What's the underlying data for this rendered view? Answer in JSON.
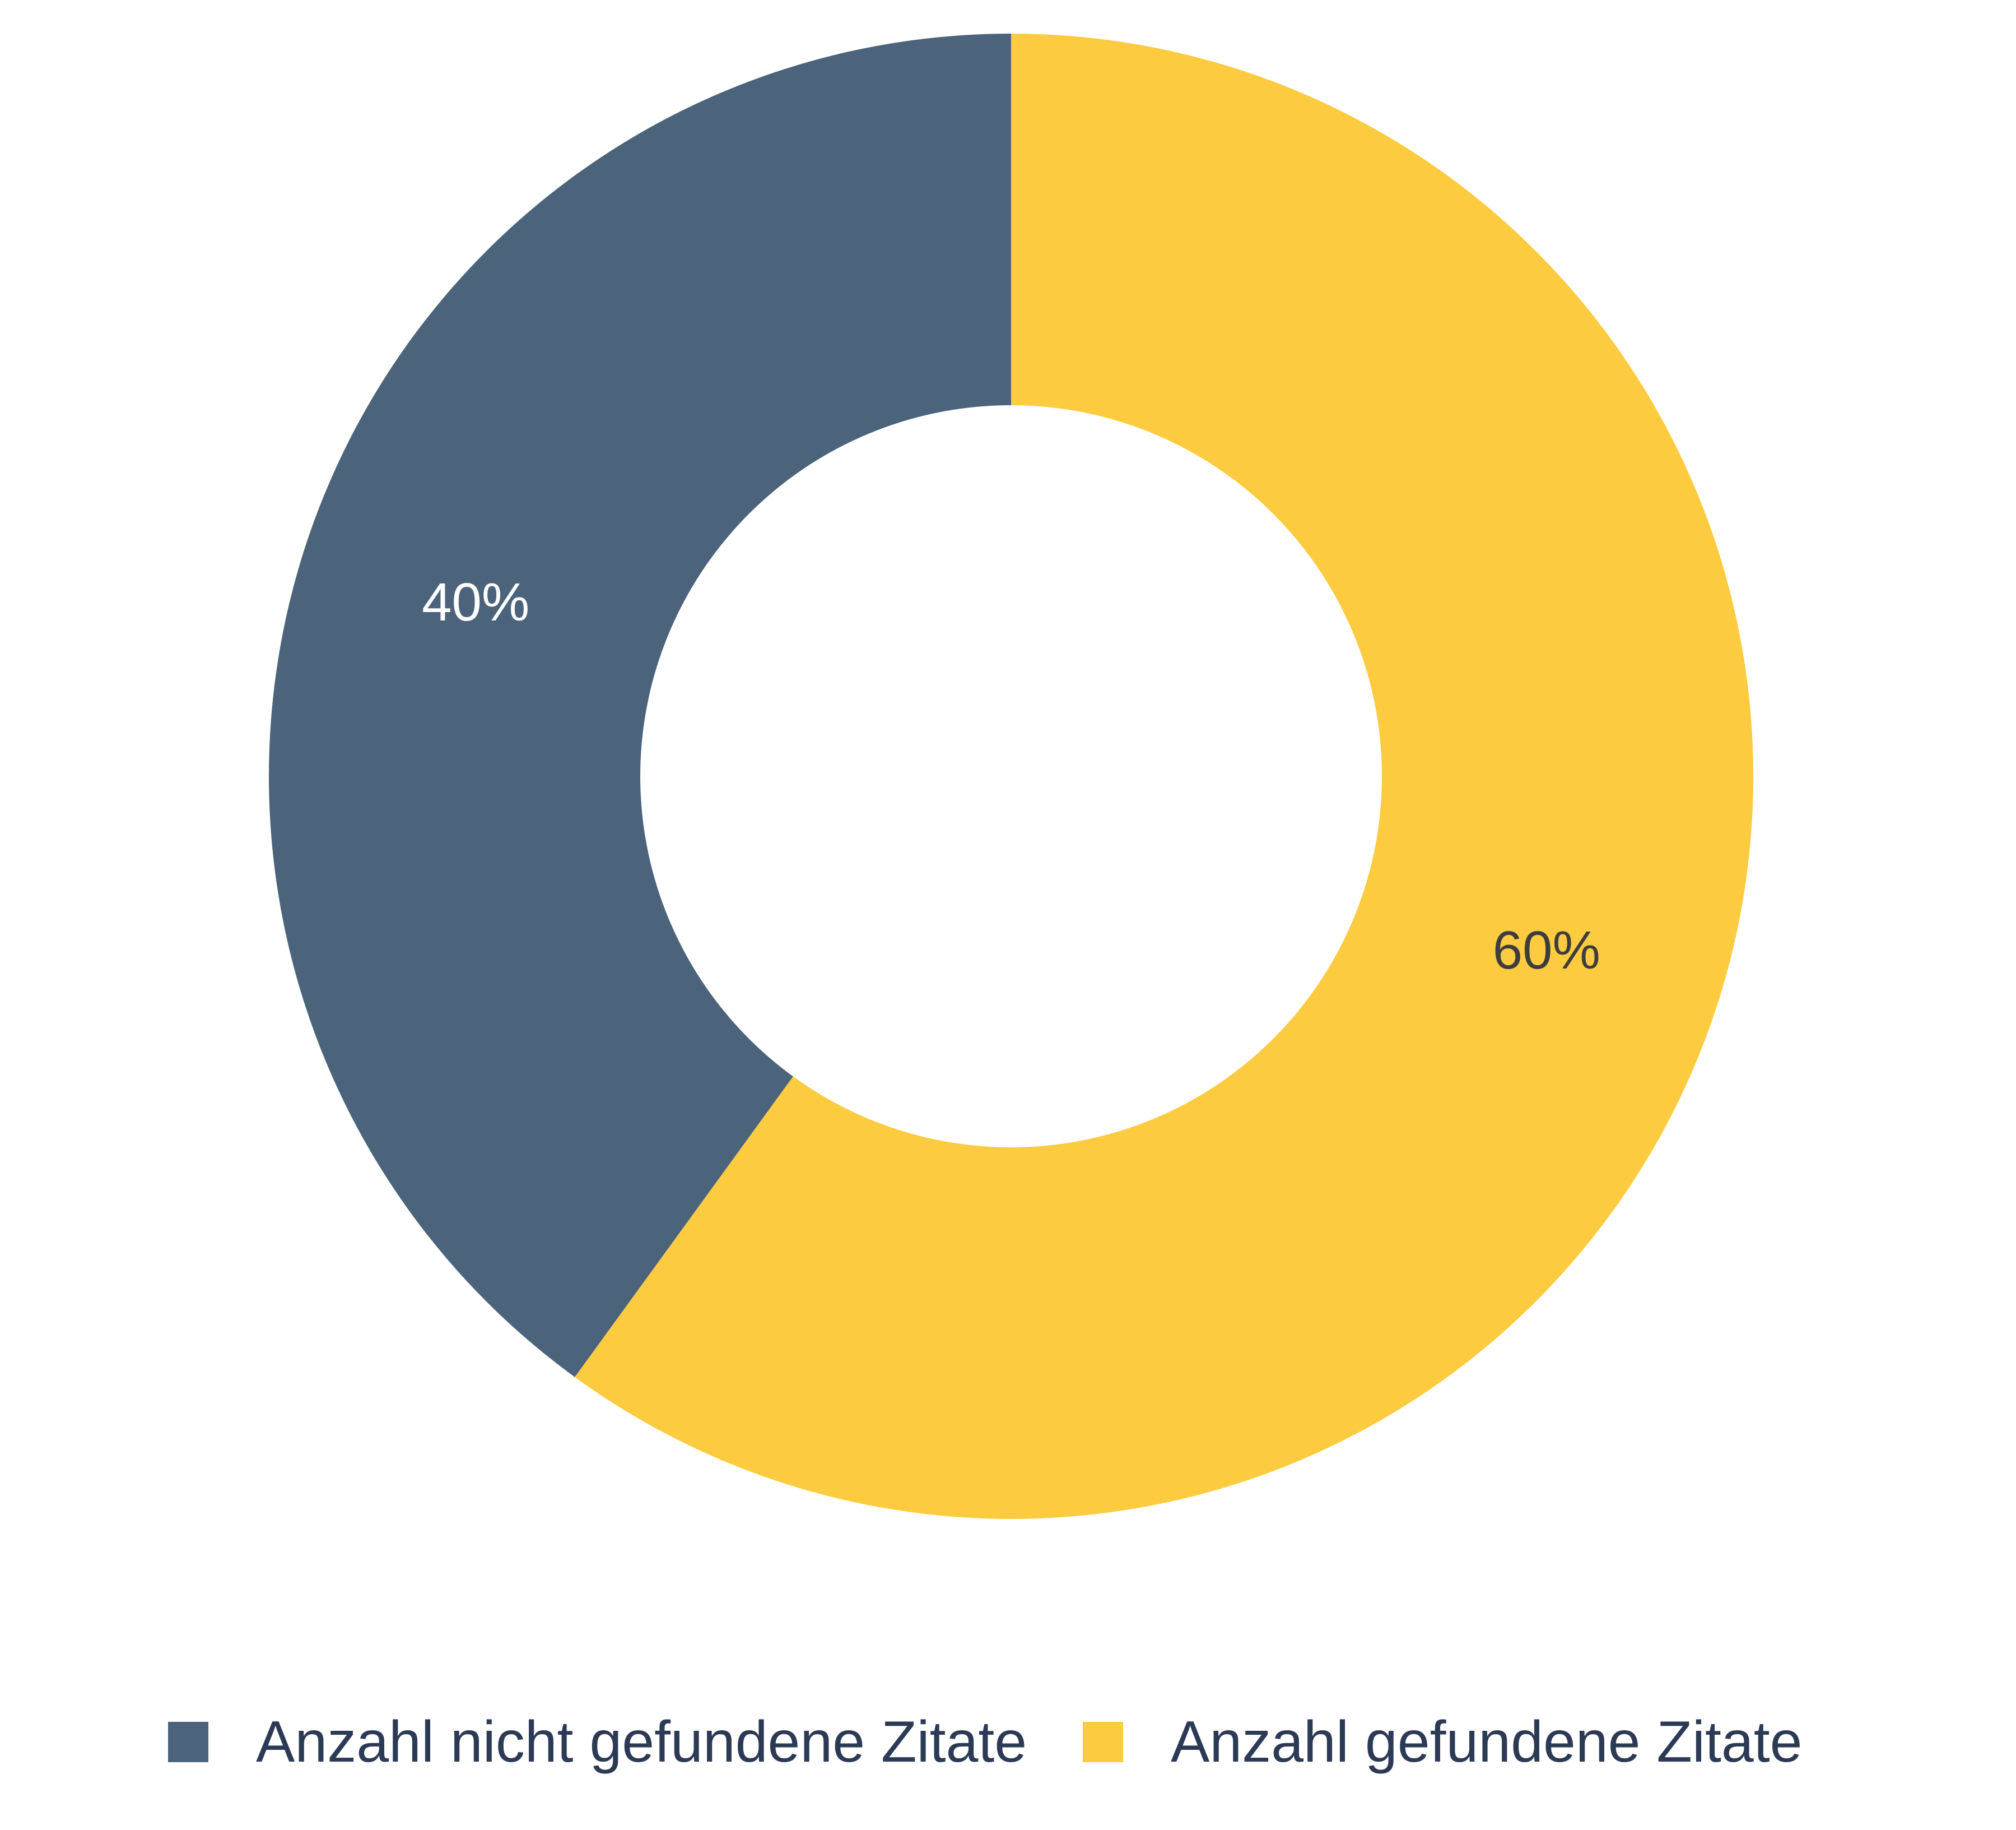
{
  "chart_data": {
    "type": "pie",
    "variant": "donut",
    "title": "",
    "slices": [
      {
        "label": "Anzahl nicht gefundene Zitate",
        "value": 40,
        "display": "40%",
        "color": "#4b637b",
        "label_color": "#ffffff"
      },
      {
        "label": "Anzahl gefundene Zitate",
        "value": 60,
        "display": "60%",
        "color": "#fdcb3f",
        "label_color": "#3d3d3d"
      }
    ],
    "legend": {
      "position": "bottom",
      "entries": [
        {
          "label": "Anzahl nicht gefundene Zitate",
          "color": "#4b637b"
        },
        {
          "label": "Anzahl gefundene Zitate",
          "color": "#fdcb3f"
        }
      ],
      "text_color": "#2c3a55"
    }
  }
}
